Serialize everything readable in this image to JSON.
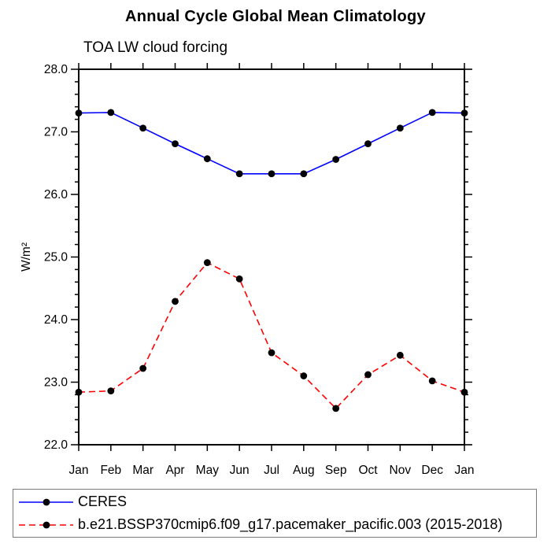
{
  "chart_data": {
    "type": "line",
    "title": "Annual Cycle Global Mean Climatology",
    "subtitle": "TOA LW cloud forcing",
    "ylabel": "W/m²",
    "ylim": [
      22.0,
      28.0
    ],
    "ytick_major": 1.0,
    "ytick_minor": 0.2,
    "ytick_label_format": "one_decimal",
    "grid": false,
    "legend_position": "bottom",
    "frame_color": "#000000",
    "marker_color": "#000000",
    "categories": [
      "Jan",
      "Feb",
      "Mar",
      "Apr",
      "May",
      "Jun",
      "Jul",
      "Aug",
      "Sep",
      "Oct",
      "Nov",
      "Dec",
      "Jan"
    ],
    "series": [
      {
        "name": "CERES",
        "color": "#0000ff",
        "line_style": "solid",
        "marker": "circle",
        "values": [
          27.3,
          27.31,
          27.06,
          26.81,
          26.57,
          26.33,
          26.33,
          26.33,
          26.56,
          26.81,
          27.06,
          27.31,
          27.3
        ]
      },
      {
        "name": "b.e21.BSSP370cmip6.f09_g17.pacemaker_pacific.003 (2015-2018)",
        "color": "#ff0000",
        "line_style": "dashed",
        "marker": "circle",
        "values": [
          22.84,
          22.86,
          23.22,
          24.29,
          24.91,
          24.65,
          23.47,
          23.1,
          22.58,
          23.12,
          23.43,
          23.02,
          22.84
        ]
      }
    ]
  }
}
